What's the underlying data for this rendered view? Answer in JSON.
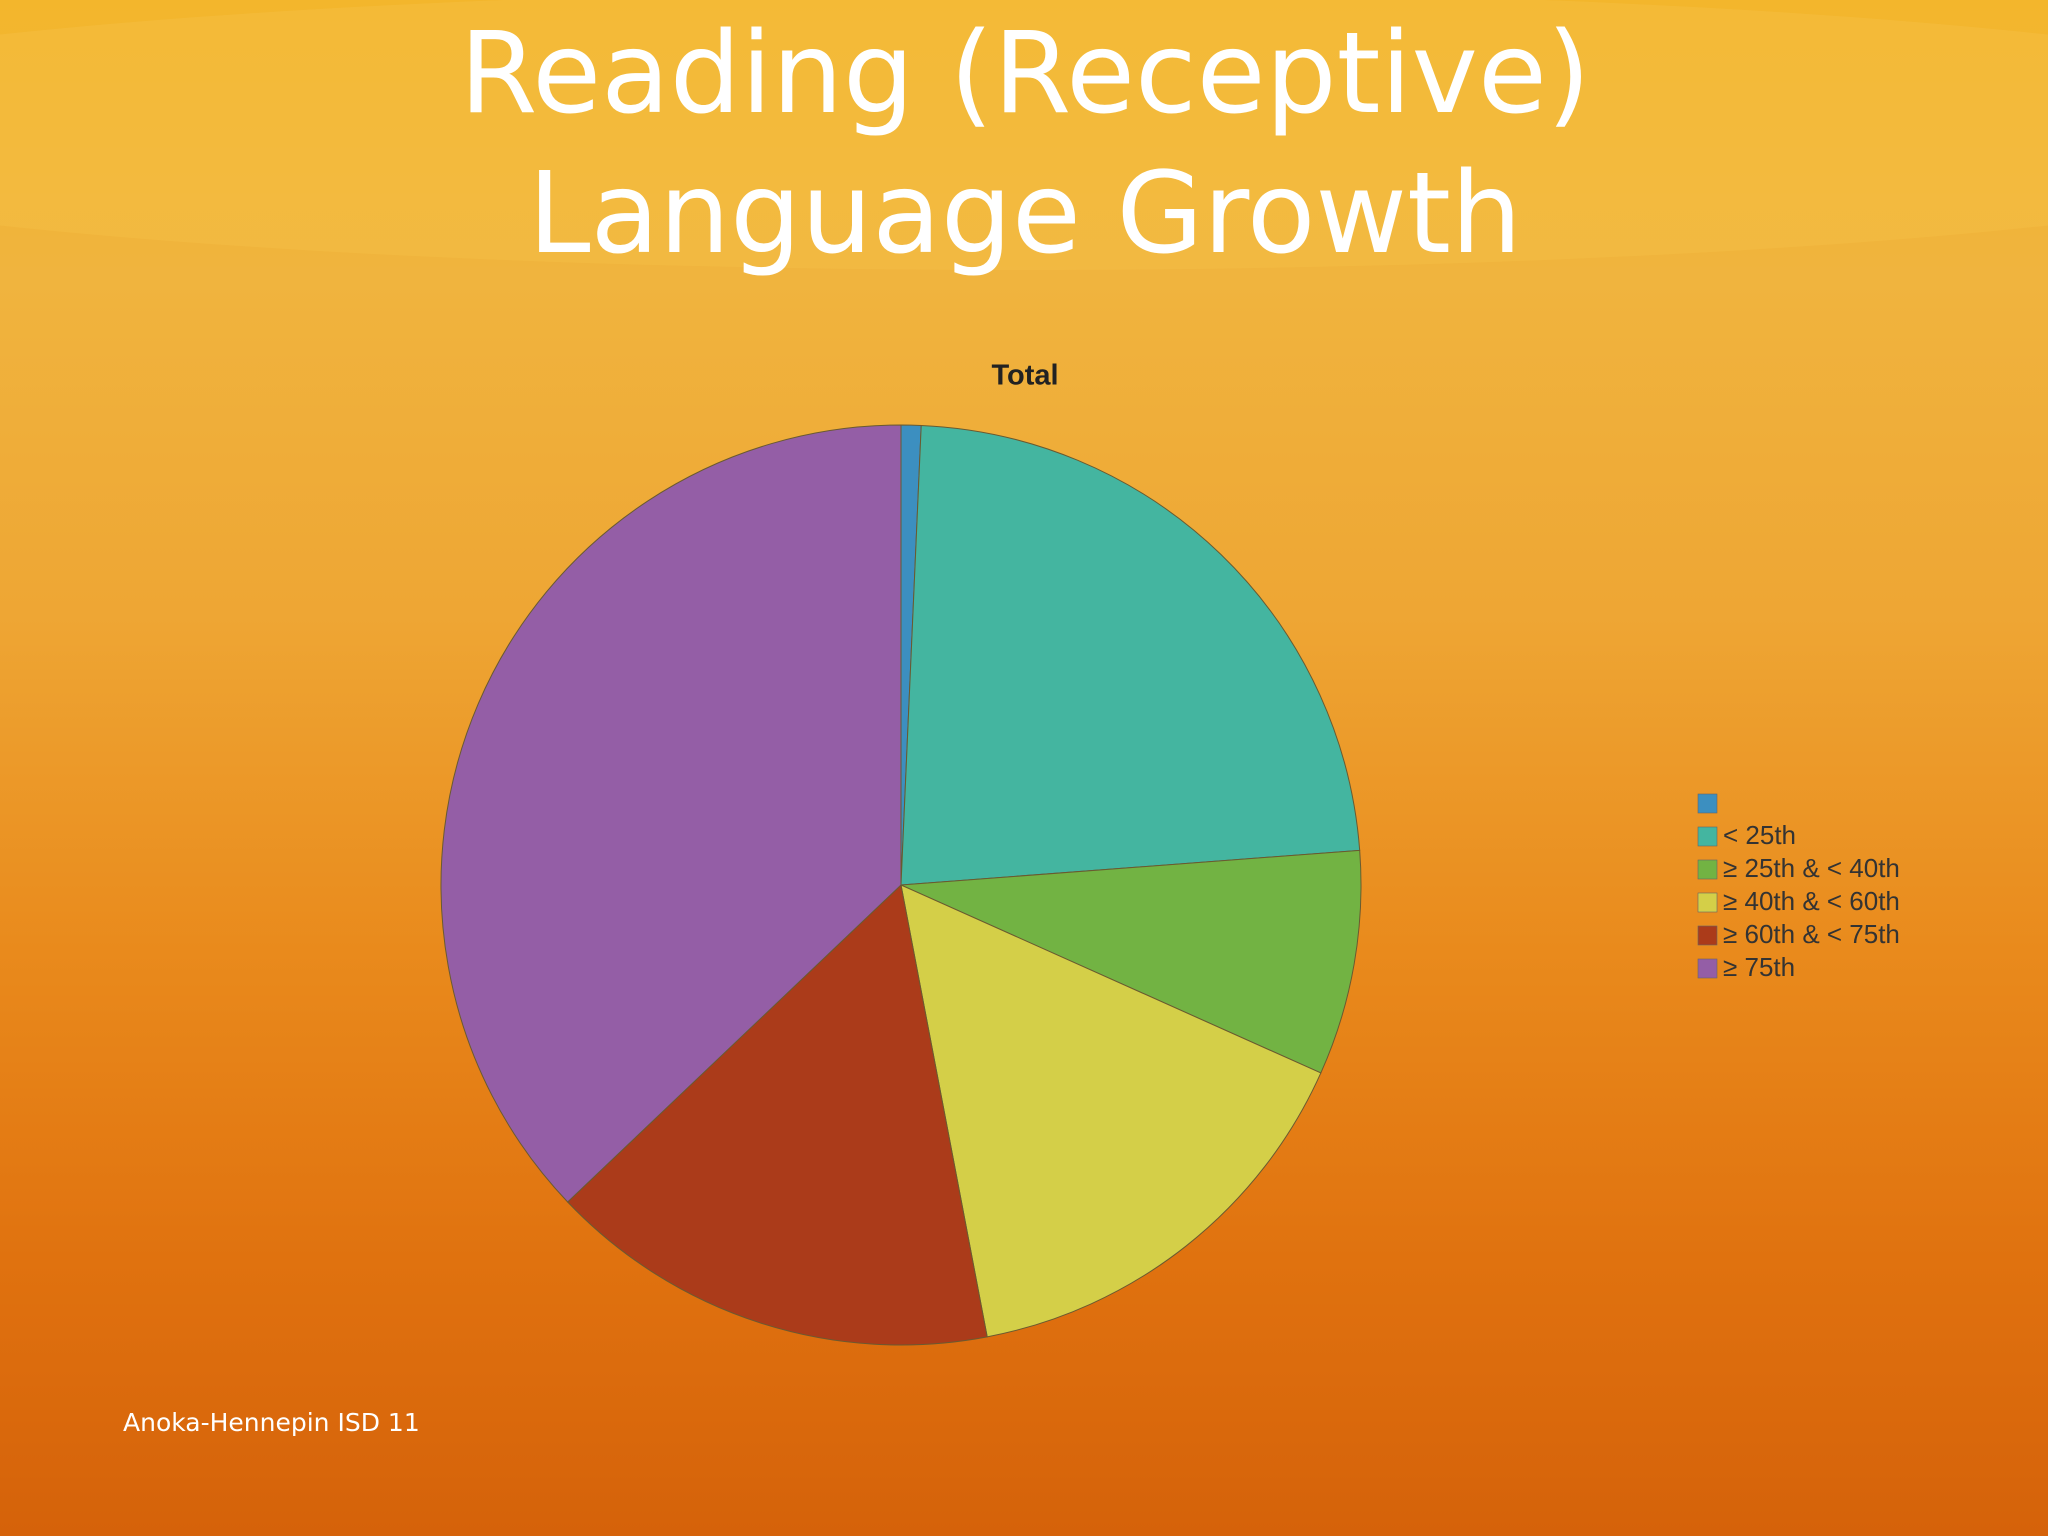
{
  "chart_data": {
    "type": "pie",
    "title_lines": [
      "Reading (Receptive)",
      "Language Growth"
    ],
    "subtitle": "Total",
    "categories": [
      null,
      "< 25th",
      "≥ 25th & < 40th",
      "≥ 40th & < 60th",
      "≥ 60th & < 75th",
      "≥ 75th"
    ],
    "values": [
      0.7,
      23.1,
      7.9,
      15.3,
      15.9,
      37.1
    ],
    "colors": [
      "#3c8fc0",
      "#44b5a0",
      "#72b343",
      "#d4cf48",
      "#ab3b1a",
      "#945ea6"
    ],
    "legend_position": "right"
  },
  "footer": "Anoka-Hennepin ISD 11"
}
